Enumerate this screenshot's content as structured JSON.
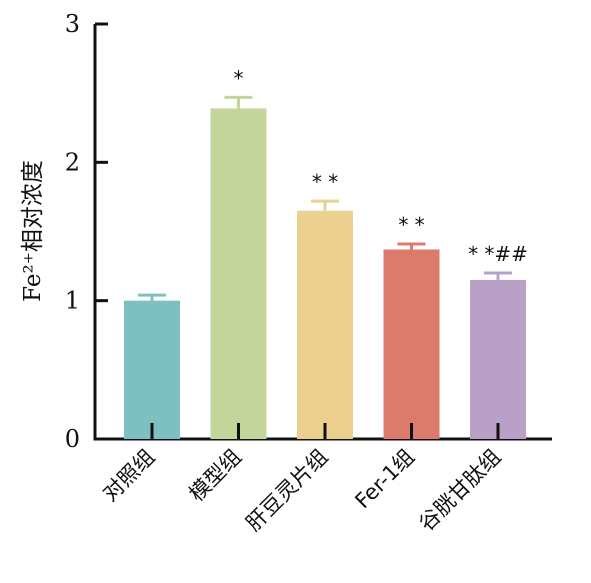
{
  "chart_data": {
    "type": "bar",
    "categories": [
      "对照组",
      "模型组",
      "肝豆灵片组",
      "Fer-1组",
      "谷胱甘肽组"
    ],
    "values": [
      1.0,
      2.39,
      1.65,
      1.37,
      1.15
    ],
    "errors": [
      0.04,
      0.08,
      0.07,
      0.04,
      0.05
    ],
    "significance": [
      "",
      "*",
      "* *",
      "* *",
      "* *##"
    ],
    "colors": [
      "#7ec0c2",
      "#c3d59b",
      "#ecd08f",
      "#dc7b6c",
      "#b9a0c6"
    ],
    "ylabel": "Fe²⁺相对浓度",
    "ylim": [
      0,
      3
    ],
    "yticks": [
      "0",
      "1",
      "2",
      "3"
    ],
    "grid": false
  }
}
